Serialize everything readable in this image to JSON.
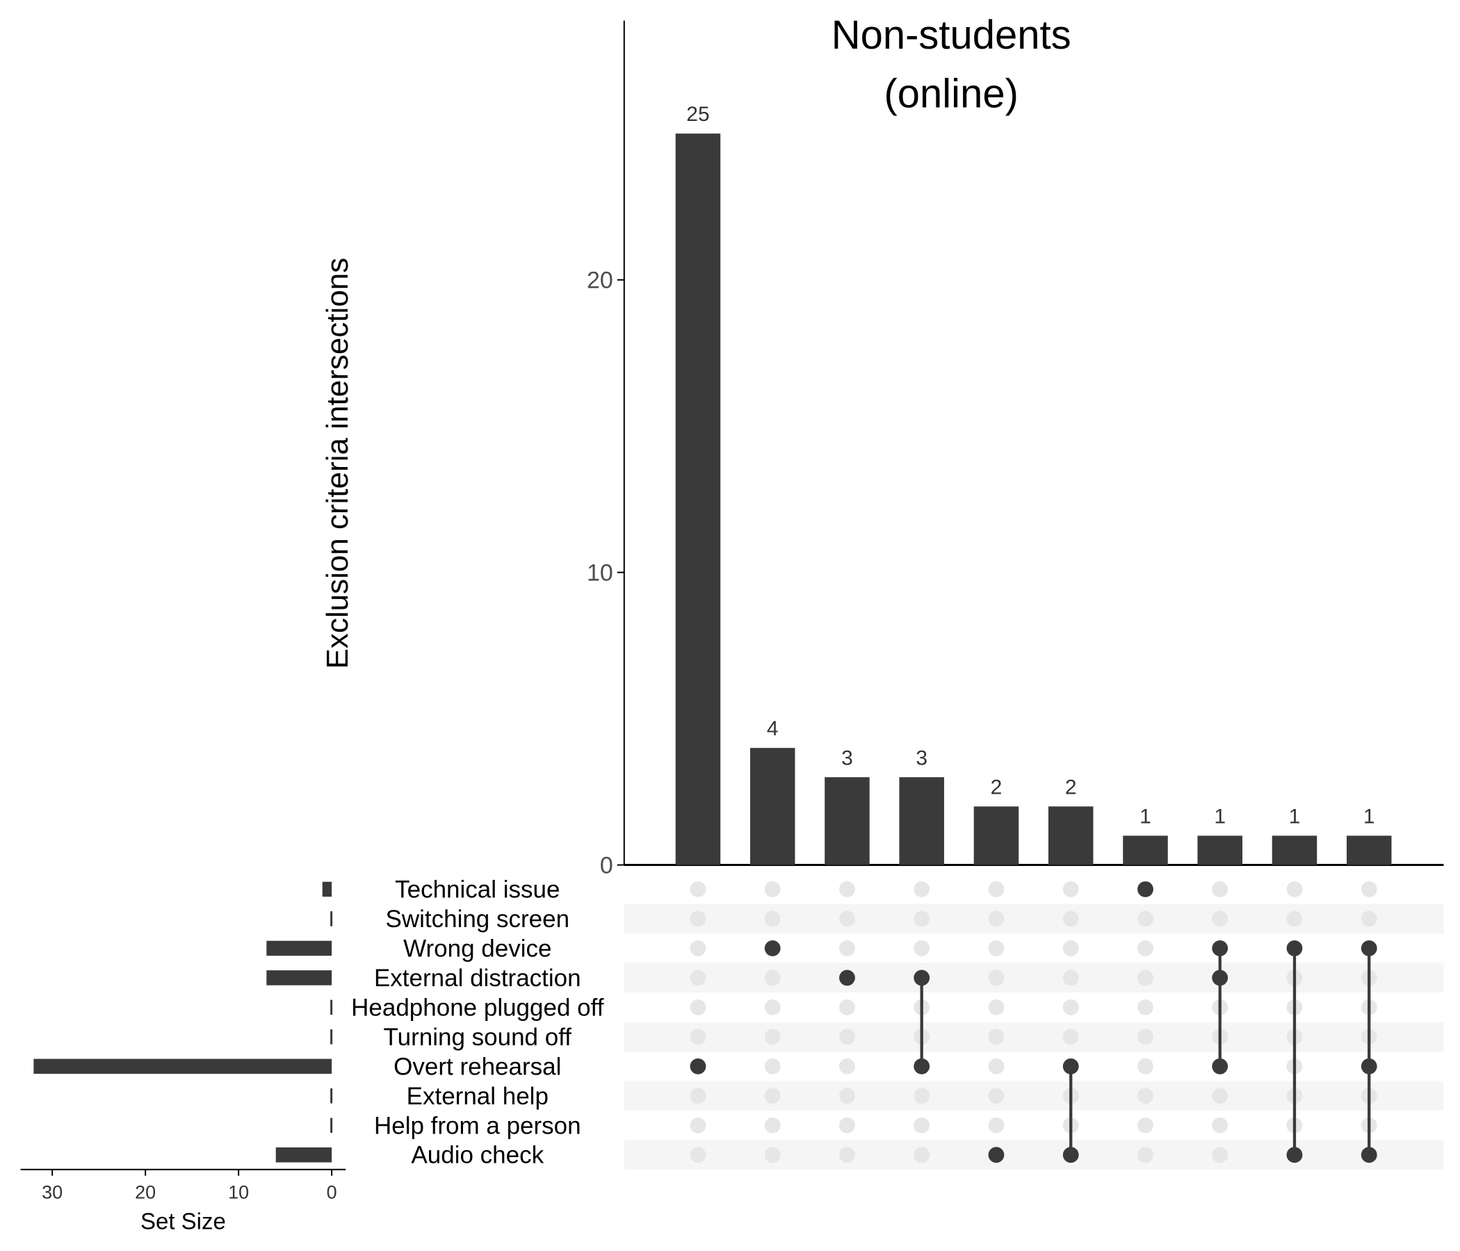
{
  "chart_data": {
    "type": "bar",
    "subtype": "upset",
    "title_lines": [
      "Non-students",
      "(online)"
    ],
    "ylabel": "Exclusion criteria intersections",
    "ylim": [
      0,
      28
    ],
    "yticks": [
      0,
      10,
      20
    ],
    "grid": false,
    "sets": [
      {
        "name": "Technical issue",
        "size": 1
      },
      {
        "name": "Switching screen",
        "size": 0
      },
      {
        "name": "Wrong device",
        "size": 7
      },
      {
        "name": "External distraction",
        "size": 7
      },
      {
        "name": "Headphone plugged off",
        "size": 0
      },
      {
        "name": "Turning sound off",
        "size": 0
      },
      {
        "name": "Overt rehearsal",
        "size": 32
      },
      {
        "name": "External help",
        "size": 0
      },
      {
        "name": "Help from a person",
        "size": 0
      },
      {
        "name": "Audio check",
        "size": 6
      }
    ],
    "intersections": [
      {
        "value": 25,
        "members": [
          "Overt rehearsal"
        ]
      },
      {
        "value": 4,
        "members": [
          "Wrong device"
        ]
      },
      {
        "value": 3,
        "members": [
          "External distraction"
        ]
      },
      {
        "value": 3,
        "members": [
          "External distraction",
          "Overt rehearsal"
        ]
      },
      {
        "value": 2,
        "members": [
          "Audio check"
        ]
      },
      {
        "value": 2,
        "members": [
          "Overt rehearsal",
          "Audio check"
        ]
      },
      {
        "value": 1,
        "members": [
          "Technical issue"
        ]
      },
      {
        "value": 1,
        "members": [
          "Wrong device",
          "External distraction",
          "Overt rehearsal"
        ]
      },
      {
        "value": 1,
        "members": [
          "Wrong device",
          "Audio check"
        ]
      },
      {
        "value": 1,
        "members": [
          "Wrong device",
          "Overt rehearsal",
          "Audio check"
        ]
      }
    ],
    "set_size_axis": {
      "label": "Set Size",
      "ticks": [
        30,
        20,
        10,
        0
      ],
      "xlim": [
        0,
        33
      ]
    },
    "colors": {
      "bar": "#3a3a3a",
      "dot_active": "#3a3a3a",
      "dot_inactive": "#e6e6e6",
      "stripe": "#f5f5f5",
      "axis": "#000000"
    }
  }
}
